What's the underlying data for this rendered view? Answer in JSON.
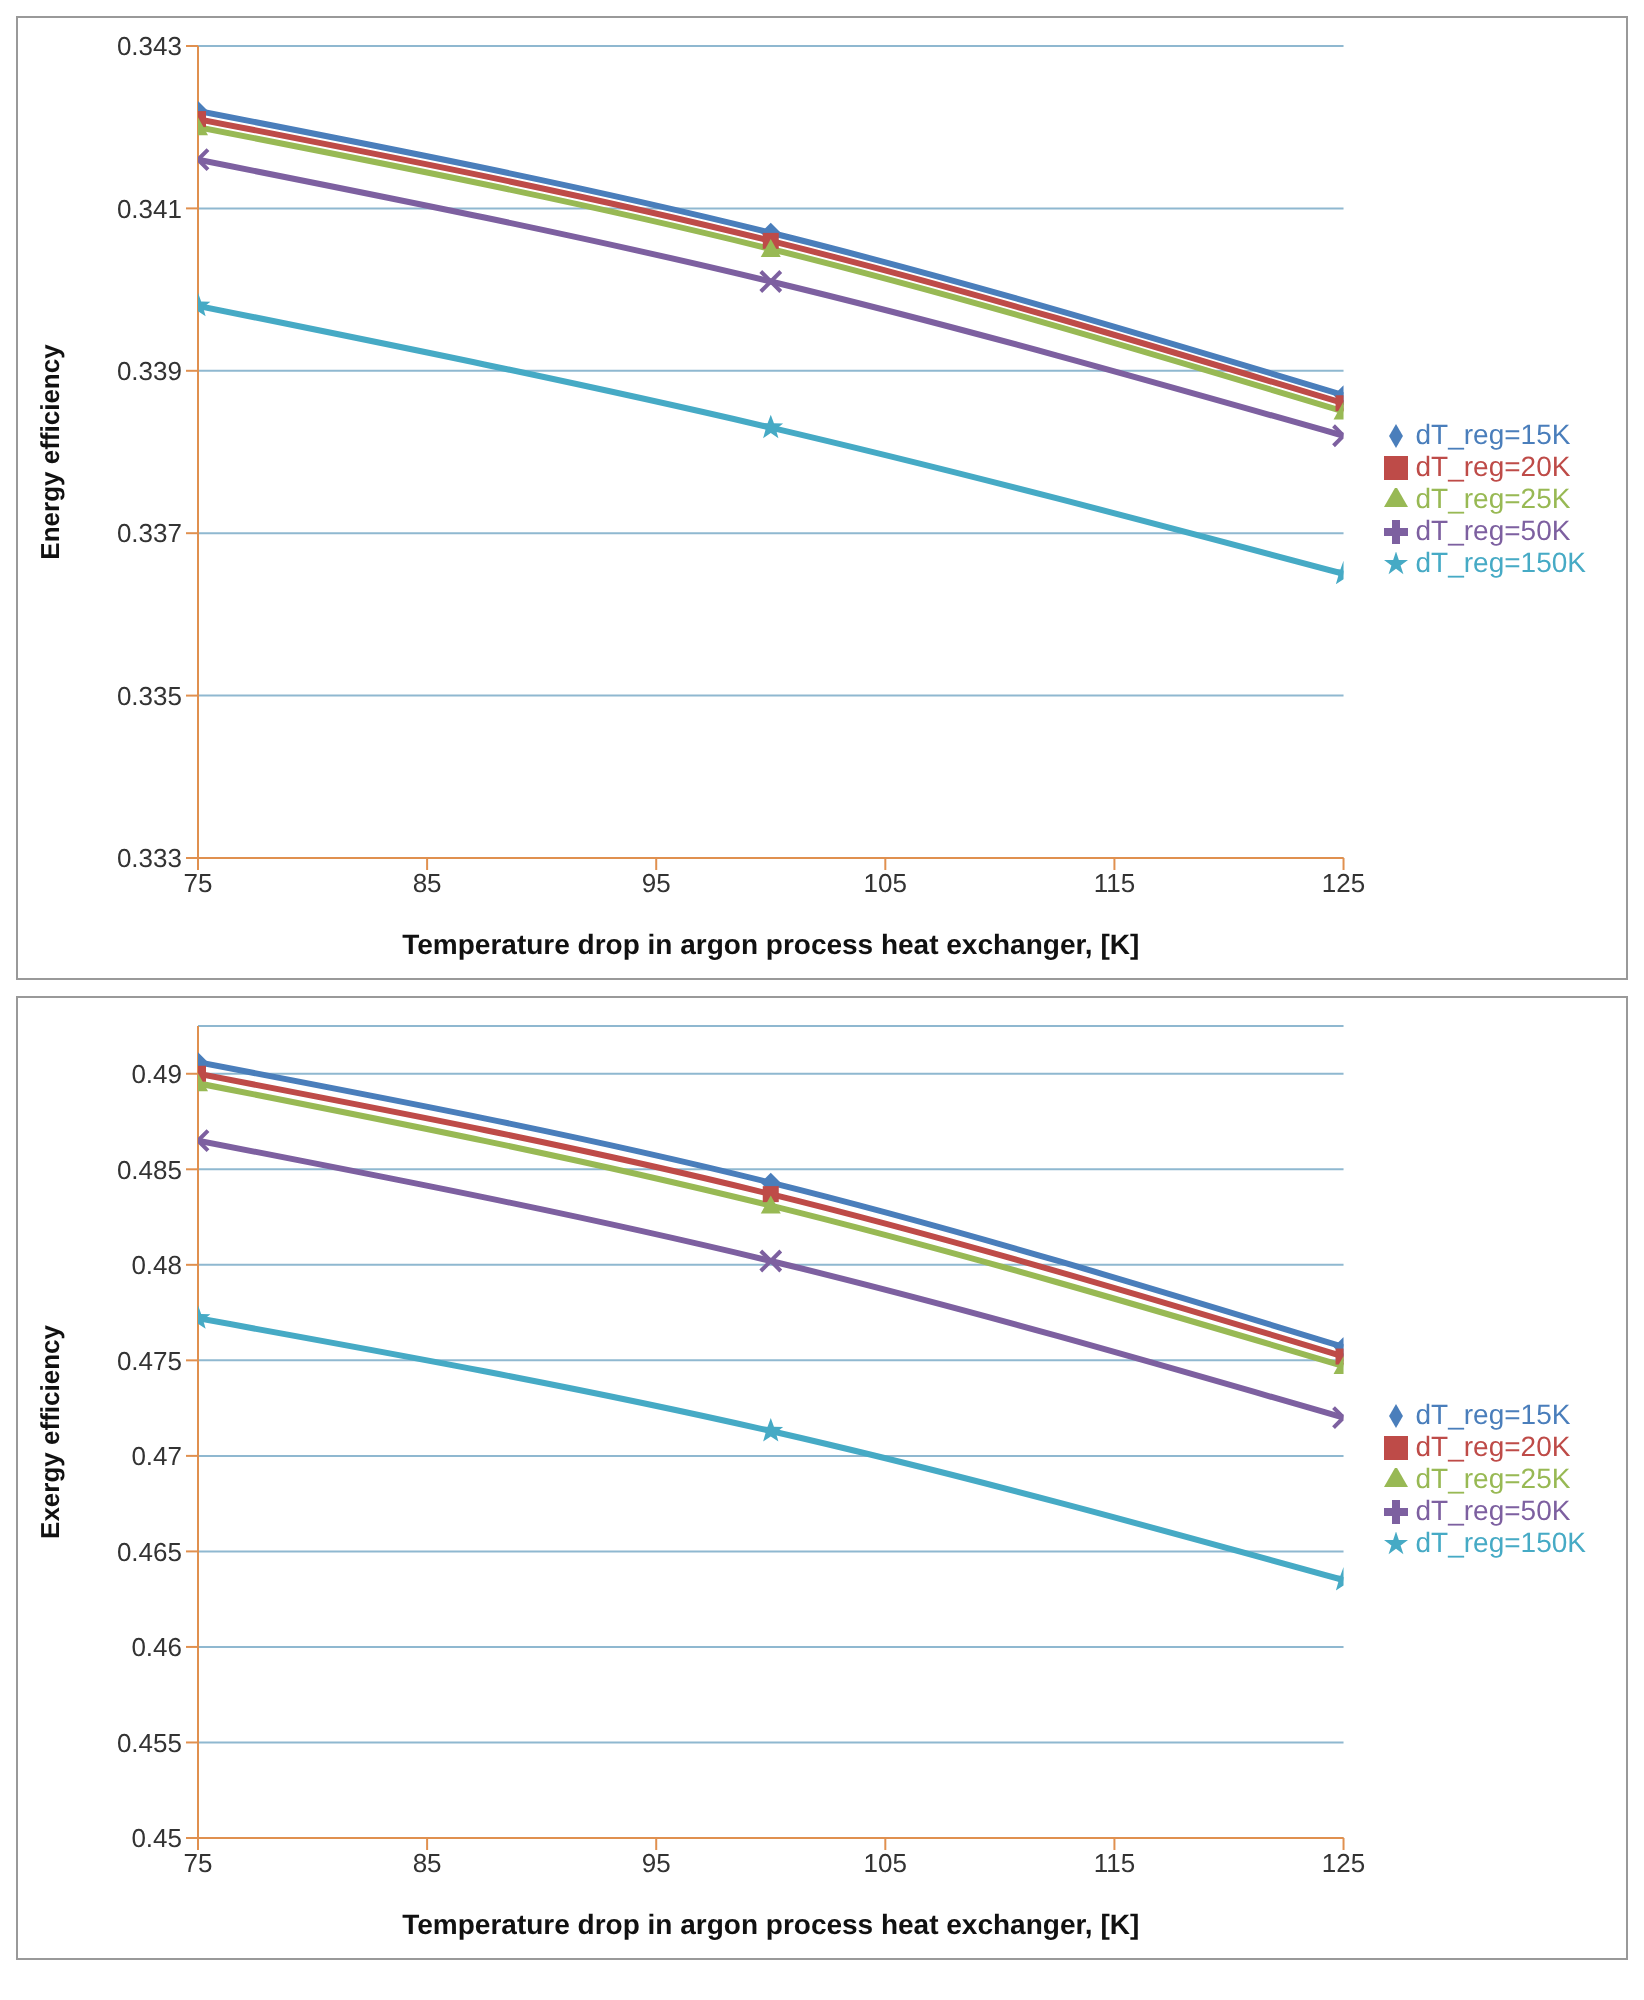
{
  "chart_data": [
    {
      "type": "line",
      "xlabel": "Temperature drop in argon process heat exchanger, [K]",
      "ylabel": "Energy efficiency",
      "x": [
        75,
        100,
        125
      ],
      "xlim": [
        75,
        125
      ],
      "xticks": [
        75,
        85,
        95,
        105,
        115,
        125
      ],
      "ylim": [
        0.333,
        0.343
      ],
      "yticks": [
        0.333,
        0.335,
        0.337,
        0.339,
        0.341,
        0.343
      ],
      "grid": "y",
      "legend": "right",
      "series": [
        {
          "name": "dT_reg=15K",
          "color": "#4a7ebb",
          "marker": "diamond",
          "values": [
            0.3422,
            0.3407,
            0.3387
          ]
        },
        {
          "name": "dT_reg=20K",
          "color": "#be4b48",
          "marker": "square",
          "values": [
            0.3421,
            0.3406,
            0.3386
          ]
        },
        {
          "name": "dT_reg=25K",
          "color": "#98b954",
          "marker": "triangle",
          "values": [
            0.342,
            0.3405,
            0.3385
          ]
        },
        {
          "name": "dT_reg=50K",
          "color": "#7d60a0",
          "marker": "cross",
          "values": [
            0.3416,
            0.3401,
            0.3382
          ]
        },
        {
          "name": "dT_reg=150K",
          "color": "#46aac5",
          "marker": "star",
          "values": [
            0.3398,
            0.3383,
            0.3365
          ]
        }
      ]
    },
    {
      "type": "line",
      "xlabel": "Temperature drop in argon process heat exchanger, [K]",
      "ylabel": "Exergy efficiency",
      "x": [
        75,
        100,
        125
      ],
      "xlim": [
        75,
        125
      ],
      "xticks": [
        75,
        85,
        95,
        105,
        115,
        125
      ],
      "ylim": [
        0.45,
        0.4925
      ],
      "yticks": [
        0.45,
        0.455,
        0.46,
        0.465,
        0.47,
        0.475,
        0.48,
        0.485,
        0.49
      ],
      "grid": "y",
      "legend": "right",
      "series": [
        {
          "name": "dT_reg=15K",
          "color": "#4a7ebb",
          "marker": "diamond",
          "values": [
            0.4906,
            0.4843,
            0.4757
          ]
        },
        {
          "name": "dT_reg=20K",
          "color": "#be4b48",
          "marker": "square",
          "values": [
            0.49,
            0.4837,
            0.4752
          ]
        },
        {
          "name": "dT_reg=25K",
          "color": "#98b954",
          "marker": "triangle",
          "values": [
            0.4895,
            0.4831,
            0.4747
          ]
        },
        {
          "name": "dT_reg=50K",
          "color": "#7d60a0",
          "marker": "cross",
          "values": [
            0.4865,
            0.4802,
            0.472
          ]
        },
        {
          "name": "dT_reg=150K",
          "color": "#46aac5",
          "marker": "star",
          "values": [
            0.4772,
            0.4713,
            0.4635
          ]
        }
      ]
    }
  ]
}
